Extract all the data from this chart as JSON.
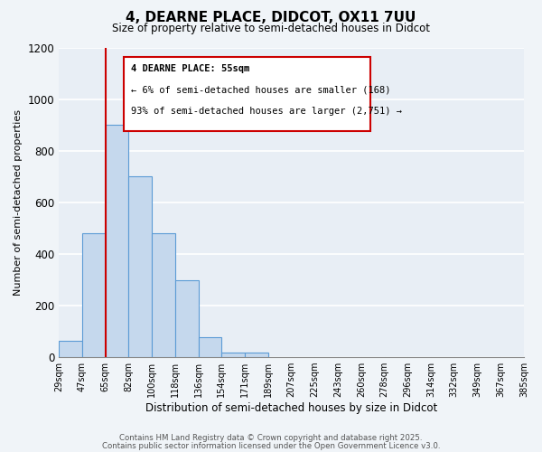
{
  "title": "4, DEARNE PLACE, DIDCOT, OX11 7UU",
  "subtitle": "Size of property relative to semi-detached houses in Didcot",
  "xlabel": "Distribution of semi-detached houses by size in Didcot",
  "ylabel": "Number of semi-detached properties",
  "bin_labels": [
    "29sqm",
    "47sqm",
    "65sqm",
    "82sqm",
    "100sqm",
    "118sqm",
    "136sqm",
    "154sqm",
    "171sqm",
    "189sqm",
    "207sqm",
    "225sqm",
    "243sqm",
    "260sqm",
    "278sqm",
    "296sqm",
    "314sqm",
    "332sqm",
    "349sqm",
    "367sqm",
    "385sqm"
  ],
  "bar_heights": [
    60,
    480,
    900,
    700,
    480,
    295,
    75,
    15,
    15,
    0,
    0,
    0,
    0,
    0,
    0,
    0,
    0,
    0,
    0,
    0
  ],
  "bar_color": "#c5d8ed",
  "bar_edge_color": "#5b9bd5",
  "red_line_x": 1.5,
  "annotation_title": "4 DEARNE PLACE: 55sqm",
  "annotation_line1": "← 6% of semi-detached houses are smaller (168)",
  "annotation_line2": "93% of semi-detached houses are larger (2,751) →",
  "annotation_color": "#cc0000",
  "ylim": [
    0,
    1200
  ],
  "yticks": [
    0,
    200,
    400,
    600,
    800,
    1000,
    1200
  ],
  "bg_color": "#e8eef5",
  "grid_color": "#ffffff",
  "fig_color": "#f0f4f8",
  "footer1": "Contains HM Land Registry data © Crown copyright and database right 2025.",
  "footer2": "Contains public sector information licensed under the Open Government Licence v3.0."
}
